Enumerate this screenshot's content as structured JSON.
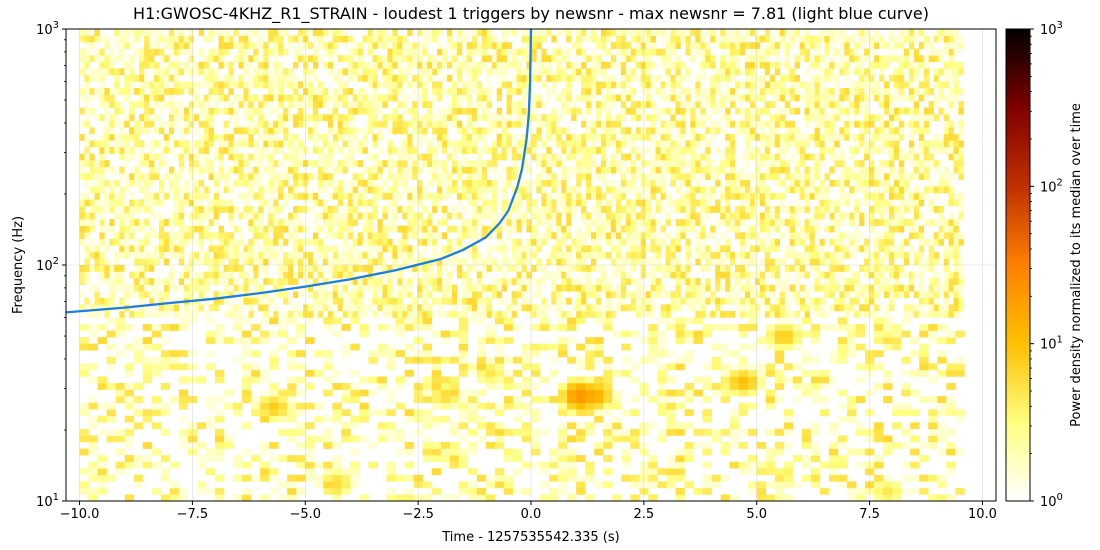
{
  "chart_data": {
    "type": "heatmap",
    "title": "H1:GWOSC-4KHZ_R1_STRAIN - loudest 1 triggers by newsnr - max newsnr = 7.81 (light blue curve)",
    "xlabel": "Time - 1257535542.335 (s)",
    "ylabel": "Frequency (Hz)",
    "xlim": [
      -10.3,
      10.3
    ],
    "ylim": [
      10,
      1000
    ],
    "yscale": "log",
    "grid": true,
    "data_extent_x": [
      -10.0,
      9.5
    ],
    "x_ticks": [
      -10.0,
      -7.5,
      -5.0,
      -2.5,
      0.0,
      2.5,
      5.0,
      7.5,
      10.0
    ],
    "x_tick_labels": [
      "−10.0",
      "−7.5",
      "−5.0",
      "−2.5",
      "0.0",
      "2.5",
      "5.0",
      "7.5",
      "10.0"
    ],
    "y_ticks": [
      10,
      100,
      1000
    ],
    "y_tick_labels": [
      {
        "base": "10",
        "exp": "1"
      },
      {
        "base": "10",
        "exp": "2"
      },
      {
        "base": "10",
        "exp": "3"
      }
    ],
    "colorbar": {
      "label": "Power density normalized to its median over time",
      "scale": "log",
      "range": [
        1,
        1000
      ],
      "ticks": [
        1,
        10,
        100,
        1000
      ],
      "tick_labels": [
        {
          "base": "10",
          "exp": "0"
        },
        {
          "base": "10",
          "exp": "1"
        },
        {
          "base": "10",
          "exp": "2"
        },
        {
          "base": "10",
          "exp": "3"
        }
      ],
      "colormap": [
        "#ffffff",
        "#ffff80",
        "#ffc000",
        "#ff8000",
        "#c03000",
        "#800000",
        "#000000"
      ]
    },
    "hot_spots": [
      {
        "t": 1.0,
        "f": 28,
        "power": 22
      },
      {
        "t": 1.3,
        "f": 28,
        "power": 14
      },
      {
        "t": 4.6,
        "f": 32,
        "power": 10
      },
      {
        "t": -5.8,
        "f": 25,
        "power": 8
      },
      {
        "t": 5.5,
        "f": 50,
        "power": 8
      },
      {
        "t": -4.4,
        "f": 12,
        "power": 6
      },
      {
        "t": 7.8,
        "f": 11,
        "power": 5
      },
      {
        "t": -2.0,
        "f": 28,
        "power": 6
      },
      {
        "t": -1.0,
        "f": 35,
        "power": 5
      }
    ],
    "series": [
      {
        "name": "newsnr = 7.81",
        "color": "#1a7fe0",
        "x": [
          -10.3,
          -9.0,
          -8.0,
          -7.0,
          -6.0,
          -5.0,
          -4.0,
          -3.0,
          -2.0,
          -1.5,
          -1.0,
          -0.7,
          -0.5,
          -0.3,
          -0.2,
          -0.1,
          -0.05,
          -0.02,
          0.0
        ],
        "y": [
          63,
          66,
          69,
          72,
          76,
          81,
          87,
          95,
          106,
          116,
          131,
          150,
          170,
          215,
          255,
          340,
          430,
          600,
          1000
        ]
      }
    ]
  }
}
